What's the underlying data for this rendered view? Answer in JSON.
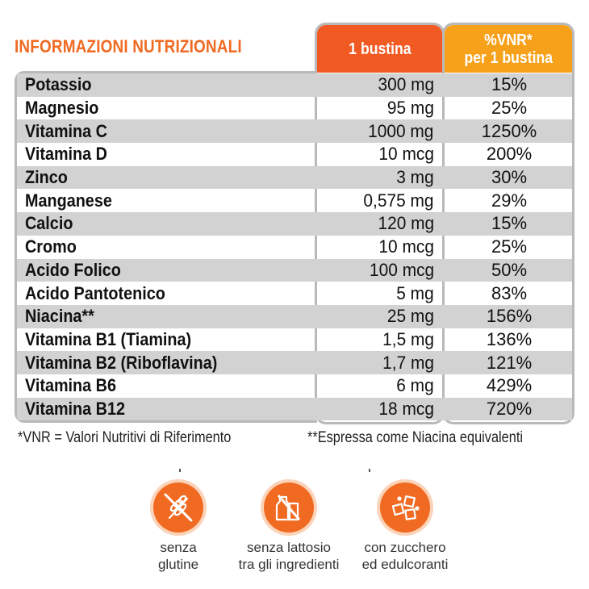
{
  "title": "INFORMAZIONI NUTRIZIONALI",
  "headers": {
    "amount_line1": "1 bustina",
    "vnr_line1": "%VNR*",
    "vnr_line2": "per 1 bustina"
  },
  "rows": [
    {
      "name": "Potassio",
      "amount": "300 mg",
      "vnr": "15%"
    },
    {
      "name": "Magnesio",
      "amount": "95 mg",
      "vnr": "25%"
    },
    {
      "name": "Vitamina C",
      "amount": "1000 mg",
      "vnr": "1250%"
    },
    {
      "name": "Vitamina D",
      "amount": "10 mcg",
      "vnr": "200%"
    },
    {
      "name": "Zinco",
      "amount": "3 mg",
      "vnr": "30%"
    },
    {
      "name": "Manganese",
      "amount": "0,575 mg",
      "vnr": "29%"
    },
    {
      "name": "Calcio",
      "amount": "120 mg",
      "vnr": "15%"
    },
    {
      "name": "Cromo",
      "amount": "10 mcg",
      "vnr": "25%"
    },
    {
      "name": "Acido Folico",
      "amount": "100 mcg",
      "vnr": "50%"
    },
    {
      "name": "Acido Pantotenico",
      "amount": "5 mg",
      "vnr": "83%"
    },
    {
      "name": "Niacina**",
      "amount": "25 mg",
      "vnr": "156%"
    },
    {
      "name": "Vitamina B1 (Tiamina)",
      "amount": "1,5 mg",
      "vnr": "136%"
    },
    {
      "name": "Vitamina B2 (Riboflavina)",
      "amount": "1,7 mg",
      "vnr": "121%"
    },
    {
      "name": "Vitamina B6",
      "amount": "6 mg",
      "vnr": "429%"
    },
    {
      "name": "Vitamina B12",
      "amount": "18 mcg",
      "vnr": "720%"
    }
  ],
  "footnotes": {
    "vnr": "*VNR = Valori Nutritivi di Riferimento",
    "niacina": "**Espressa come Niacina equivalenti"
  },
  "badges": [
    {
      "icon": "gluten-free-icon",
      "line1": "senza",
      "line2": "glutine"
    },
    {
      "icon": "lactose-free-icon",
      "line1": "senza lattosio",
      "line2": "tra gli ingredienti"
    },
    {
      "icon": "sugar-cubes-icon",
      "line1": "con zucchero",
      "line2": "ed edulcoranti"
    }
  ],
  "colors": {
    "accent_orange": "#f15a22",
    "accent_amber": "#f7a11a",
    "row_shade": "#d2d2d2",
    "border": "#b9b9b9"
  }
}
